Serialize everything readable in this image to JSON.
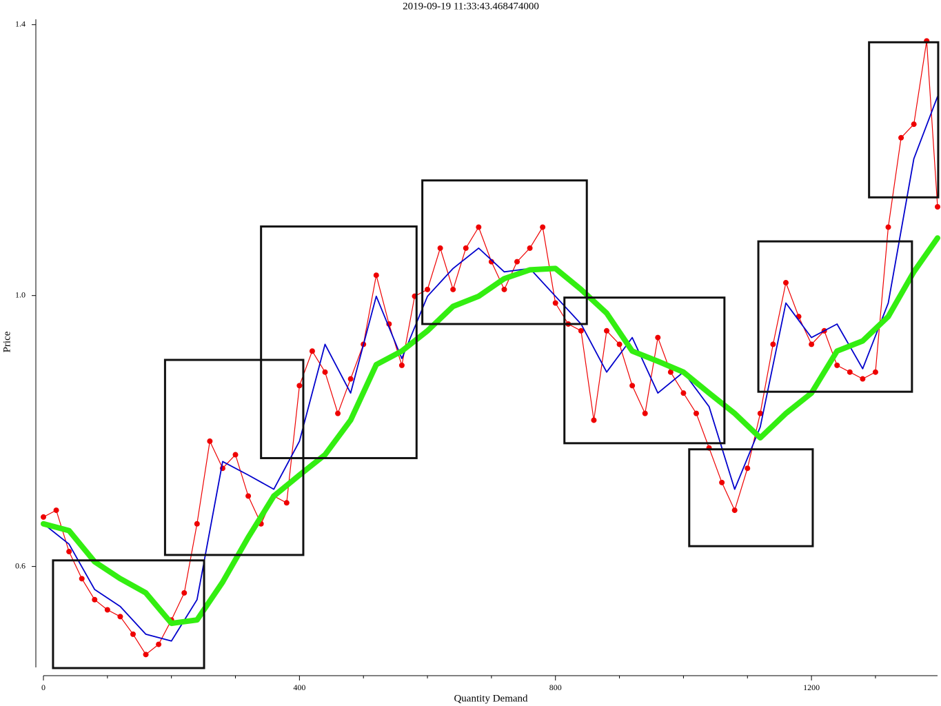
{
  "chart_data": {
    "type": "line",
    "title": "2019-09-19 11:33:43.468474000",
    "xlabel": "Quantity Demand",
    "ylabel": "Price",
    "xlim": [
      0,
      1397
    ],
    "ylim": [
      0.451,
      1.414
    ],
    "xticks": [
      0,
      400,
      800,
      1200
    ],
    "x_minor_ticks": [
      100,
      200,
      300,
      500,
      600,
      700,
      900,
      1000,
      1100,
      1300
    ],
    "yticks": [
      0.6,
      {
        "value": 1.0,
        "label": "1.0"
      },
      1.4
    ],
    "series": [
      {
        "color": "#ee0000",
        "marker": "o",
        "x": [
          0,
          20,
          40,
          60,
          80,
          100,
          120,
          140,
          160,
          180,
          200,
          220,
          240,
          260,
          280,
          300,
          320,
          340,
          360,
          380,
          400,
          420,
          440,
          460,
          480,
          500,
          520,
          540,
          560,
          580,
          600,
          620,
          640,
          660,
          680,
          700,
          720,
          740,
          760,
          780,
          800,
          820,
          840,
          860,
          880,
          900,
          920,
          940,
          960,
          980,
          1000,
          1020,
          1040,
          1060,
          1080,
          1100,
          1120,
          1140,
          1160,
          1180,
          1200,
          1220,
          1240,
          1260,
          1280,
          1300,
          1320,
          1340,
          1360,
          1380,
          1397
        ],
        "values": [
          0.673,
          0.683,
          0.622,
          0.582,
          0.551,
          0.536,
          0.526,
          0.5,
          0.47,
          0.485,
          0.521,
          0.561,
          0.663,
          0.785,
          0.745,
          0.765,
          0.704,
          0.663,
          0.704,
          0.694,
          0.867,
          0.918,
          0.887,
          0.826,
          0.877,
          0.928,
          1.03,
          0.958,
          0.897,
          0.999,
          1.009,
          1.07,
          1.009,
          1.07,
          1.101,
          1.05,
          1.009,
          1.05,
          1.07,
          1.101,
          0.989,
          0.958,
          0.948,
          0.816,
          0.948,
          0.928,
          0.867,
          0.826,
          0.938,
          0.887,
          0.856,
          0.826,
          0.775,
          0.724,
          0.683,
          0.745,
          0.826,
          0.928,
          1.019,
          0.969,
          0.928,
          0.948,
          0.897,
          0.887,
          0.877,
          0.887,
          1.101,
          1.233,
          1.253,
          1.376,
          1.131
        ]
      },
      {
        "color": "#0000cc",
        "x": [
          0,
          40,
          80,
          120,
          160,
          200,
          240,
          280,
          320,
          360,
          400,
          440,
          480,
          520,
          560,
          600,
          640,
          680,
          720,
          760,
          800,
          840,
          880,
          920,
          960,
          1000,
          1040,
          1080,
          1120,
          1160,
          1200,
          1240,
          1280,
          1320,
          1360,
          1397
        ],
        "values": [
          0.663,
          0.633,
          0.566,
          0.541,
          0.5,
          0.49,
          0.551,
          0.755,
          0.735,
          0.714,
          0.785,
          0.928,
          0.856,
          0.999,
          0.907,
          0.999,
          1.04,
          1.07,
          1.035,
          1.04,
          0.999,
          0.958,
          0.887,
          0.938,
          0.856,
          0.887,
          0.836,
          0.714,
          0.806,
          0.989,
          0.938,
          0.958,
          0.892,
          0.989,
          1.202,
          1.294
        ]
      },
      {
        "color": "#33ee11",
        "x": [
          0,
          40,
          80,
          120,
          160,
          200,
          240,
          280,
          320,
          360,
          400,
          440,
          480,
          520,
          560,
          600,
          640,
          680,
          720,
          760,
          800,
          840,
          880,
          920,
          960,
          1000,
          1040,
          1080,
          1120,
          1160,
          1200,
          1240,
          1280,
          1320,
          1360,
          1397
        ],
        "values": [
          0.663,
          0.653,
          0.607,
          0.582,
          0.561,
          0.516,
          0.521,
          0.577,
          0.643,
          0.704,
          0.735,
          0.765,
          0.816,
          0.898,
          0.918,
          0.948,
          0.984,
          0.999,
          1.025,
          1.038,
          1.04,
          1.009,
          0.974,
          0.918,
          0.903,
          0.887,
          0.856,
          0.826,
          0.79,
          0.826,
          0.856,
          0.918,
          0.933,
          0.969,
          1.035,
          1.085
        ]
      }
    ],
    "rectangles": [
      {
        "x": [
          15,
          251
        ],
        "y": [
          0.45,
          0.609
        ]
      },
      {
        "x": [
          190,
          406
        ],
        "y": [
          0.617,
          0.905
        ]
      },
      {
        "x": [
          340,
          583
        ],
        "y": [
          0.76,
          1.102
        ]
      },
      {
        "x": [
          592,
          849
        ],
        "y": [
          0.958,
          1.17
        ]
      },
      {
        "x": [
          814,
          1064
        ],
        "y": [
          0.782,
          0.997
        ]
      },
      {
        "x": [
          1009,
          1202
        ],
        "y": [
          0.63,
          0.773
        ]
      },
      {
        "x": [
          1117,
          1357
        ],
        "y": [
          0.858,
          1.08
        ]
      },
      {
        "x": [
          1290,
          1398
        ],
        "y": [
          1.145,
          1.374
        ]
      }
    ]
  }
}
